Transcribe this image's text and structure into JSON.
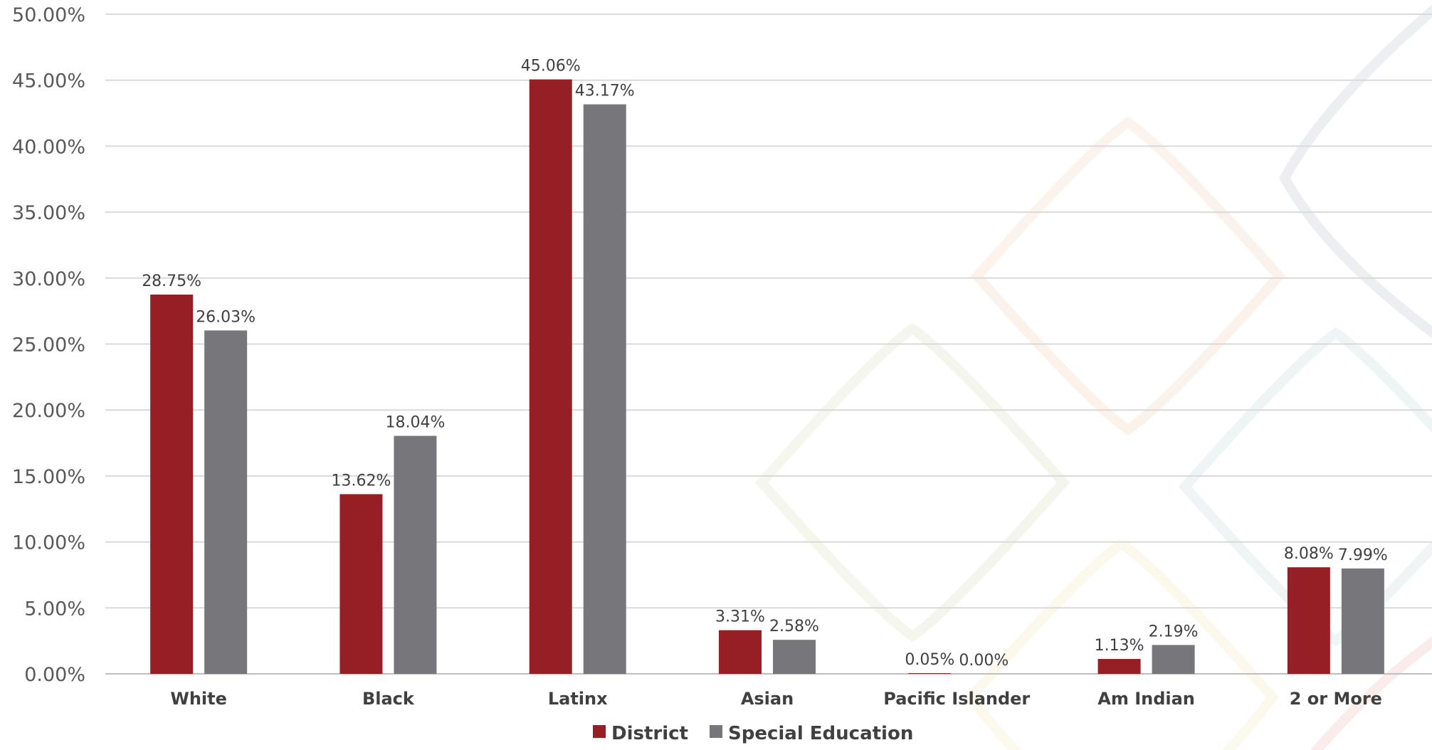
{
  "chart_data": {
    "type": "bar",
    "categories": [
      "White",
      "Black",
      "Latinx",
      "Asian",
      "Pacific Islander",
      "Am Indian",
      "2 or More"
    ],
    "series": [
      {
        "name": "District",
        "color": "#951f24",
        "values": [
          28.75,
          13.62,
          45.06,
          3.31,
          0.05,
          1.13,
          8.08
        ],
        "labels": [
          "28.75%",
          "13.62%",
          "45.06%",
          "3.31%",
          "0.05%",
          "1.13%",
          "8.08%"
        ]
      },
      {
        "name": "Special Education",
        "color": "#77767b",
        "values": [
          26.03,
          18.04,
          43.17,
          2.58,
          0.0,
          2.19,
          7.99
        ],
        "labels": [
          "26.03%",
          "18.04%",
          "43.17%",
          "2.58%",
          "0.00%",
          "2.19%",
          "7.99%"
        ]
      }
    ],
    "y_ticks": [
      "0.00%",
      "5.00%",
      "10.00%",
      "15.00%",
      "20.00%",
      "25.00%",
      "30.00%",
      "35.00%",
      "40.00%",
      "45.00%",
      "50.00%"
    ],
    "ylim": [
      0,
      50
    ],
    "grid": true,
    "legend_position": "bottom-center",
    "title": "",
    "xlabel": "",
    "ylabel": ""
  }
}
